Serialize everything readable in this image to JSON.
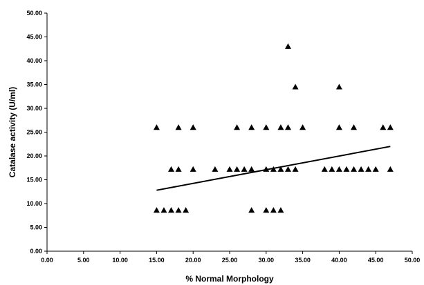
{
  "chart_data": {
    "type": "scatter",
    "xlabel": "% Normal Morphology",
    "ylabel": "Catalase activity (U/ml)",
    "xlim": [
      0,
      50
    ],
    "ylim": [
      0,
      50
    ],
    "x_ticks": [
      "0.00",
      "5.00",
      "10.00",
      "15.00",
      "20.00",
      "25.00",
      "30.00",
      "35.00",
      "40.00",
      "45.00",
      "50.00"
    ],
    "y_ticks": [
      "0.00",
      "5.00",
      "10.00",
      "15.00",
      "20.00",
      "25.00",
      "30.00",
      "35.00",
      "40.00",
      "45.00",
      "50.00"
    ],
    "grid": false,
    "marker": "triangle",
    "series": [
      {
        "points": [
          [
            15,
            26
          ],
          [
            18,
            26
          ],
          [
            20,
            26
          ],
          [
            26,
            26
          ],
          [
            28,
            26
          ],
          [
            30,
            26
          ],
          [
            32,
            26
          ],
          [
            33,
            26
          ],
          [
            35,
            26
          ],
          [
            40,
            26
          ],
          [
            42,
            26
          ],
          [
            46,
            26
          ],
          [
            47,
            26
          ],
          [
            33,
            43
          ],
          [
            34,
            34.5
          ],
          [
            40,
            34.5
          ],
          [
            17,
            17.2
          ],
          [
            18,
            17.2
          ],
          [
            20,
            17.2
          ],
          [
            23,
            17.2
          ],
          [
            25,
            17.2
          ],
          [
            26,
            17.2
          ],
          [
            27,
            17.2
          ],
          [
            28,
            17.2
          ],
          [
            30,
            17.2
          ],
          [
            31,
            17.2
          ],
          [
            32,
            17.2
          ],
          [
            33,
            17.2
          ],
          [
            34,
            17.2
          ],
          [
            38,
            17.2
          ],
          [
            39,
            17.2
          ],
          [
            40,
            17.2
          ],
          [
            41,
            17.2
          ],
          [
            42,
            17.2
          ],
          [
            43,
            17.2
          ],
          [
            44,
            17.2
          ],
          [
            45,
            17.2
          ],
          [
            47,
            17.2
          ],
          [
            15,
            8.6
          ],
          [
            16,
            8.6
          ],
          [
            17,
            8.6
          ],
          [
            18,
            8.6
          ],
          [
            19,
            8.6
          ],
          [
            28,
            8.6
          ],
          [
            30,
            8.6
          ],
          [
            31,
            8.6
          ],
          [
            32,
            8.6
          ]
        ]
      }
    ],
    "trendline": {
      "x": [
        15,
        47
      ],
      "y": [
        12.8,
        22
      ]
    }
  }
}
